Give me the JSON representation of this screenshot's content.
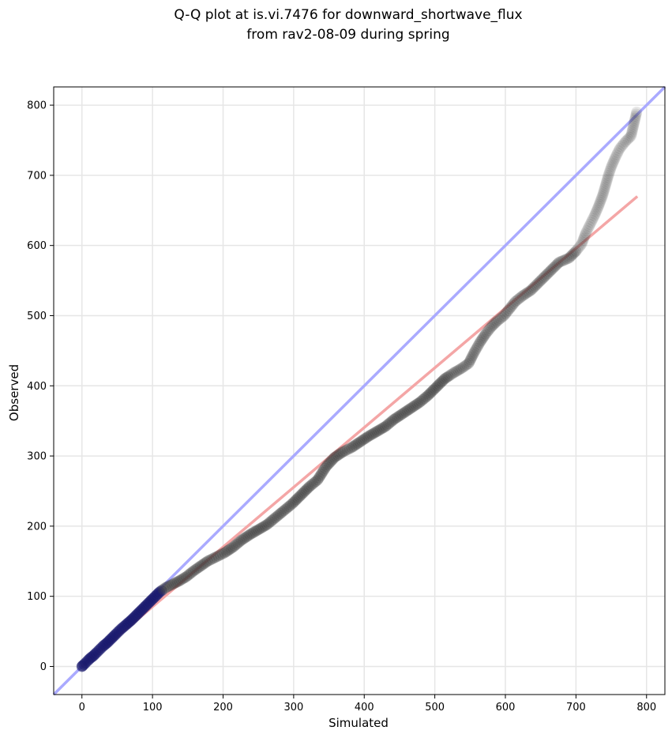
{
  "chart_data": {
    "type": "scatter",
    "title_lines": [
      "Q-Q plot at is.vi.7476 for downward_shortwave_flux",
      "from rav2-08-09 during spring"
    ],
    "xlabel": "Simulated",
    "ylabel": "Observed",
    "xlim": [
      -40,
      826
    ],
    "ylim": [
      -40,
      826
    ],
    "xticks": [
      0,
      100,
      200,
      300,
      400,
      500,
      600,
      700,
      800
    ],
    "yticks": [
      0,
      100,
      200,
      300,
      400,
      500,
      600,
      700,
      800
    ],
    "xtick_labels": [
      "0",
      "100",
      "200",
      "300",
      "400",
      "500",
      "600",
      "700",
      "800"
    ],
    "ytick_labels": [
      "0",
      "100",
      "200",
      "300",
      "400",
      "500",
      "600",
      "700",
      "800"
    ],
    "grid": true,
    "colors": {
      "identity_line": "#aaaaff",
      "fit_line": "#f4a6a6",
      "points": "#3a3a3a",
      "low_points": "#1a1a6e",
      "grid": "#e6e6e6"
    },
    "reference_lines": [
      {
        "kind": "identity",
        "color": "#aaaaff",
        "x": [
          -40,
          826
        ],
        "y": [
          -40,
          826
        ]
      },
      {
        "kind": "fit",
        "color": "#f4a6a6",
        "x": [
          0,
          787
        ],
        "y": [
          0,
          670
        ]
      }
    ],
    "quantiles": [
      {
        "x": 0,
        "y": 0
      },
      {
        "x": 1,
        "y": 1
      },
      {
        "x": 3,
        "y": 3
      },
      {
        "x": 5,
        "y": 5
      },
      {
        "x": 8,
        "y": 8
      },
      {
        "x": 12,
        "y": 12
      },
      {
        "x": 16,
        "y": 15
      },
      {
        "x": 20,
        "y": 19
      },
      {
        "x": 25,
        "y": 24
      },
      {
        "x": 30,
        "y": 29
      },
      {
        "x": 36,
        "y": 34
      },
      {
        "x": 42,
        "y": 40
      },
      {
        "x": 48,
        "y": 46
      },
      {
        "x": 55,
        "y": 53
      },
      {
        "x": 62,
        "y": 59
      },
      {
        "x": 70,
        "y": 66
      },
      {
        "x": 78,
        "y": 74
      },
      {
        "x": 86,
        "y": 82
      },
      {
        "x": 94,
        "y": 90
      },
      {
        "x": 102,
        "y": 98
      },
      {
        "x": 110,
        "y": 106
      },
      {
        "x": 118,
        "y": 112
      },
      {
        "x": 128,
        "y": 117
      },
      {
        "x": 138,
        "y": 122
      },
      {
        "x": 148,
        "y": 128
      },
      {
        "x": 158,
        "y": 136
      },
      {
        "x": 168,
        "y": 143
      },
      {
        "x": 178,
        "y": 150
      },
      {
        "x": 190,
        "y": 156
      },
      {
        "x": 202,
        "y": 162
      },
      {
        "x": 214,
        "y": 170
      },
      {
        "x": 226,
        "y": 180
      },
      {
        "x": 238,
        "y": 188
      },
      {
        "x": 250,
        "y": 195
      },
      {
        "x": 262,
        "y": 202
      },
      {
        "x": 274,
        "y": 212
      },
      {
        "x": 286,
        "y": 222
      },
      {
        "x": 298,
        "y": 232
      },
      {
        "x": 310,
        "y": 244
      },
      {
        "x": 322,
        "y": 256
      },
      {
        "x": 334,
        "y": 266
      },
      {
        "x": 346,
        "y": 285
      },
      {
        "x": 358,
        "y": 298
      },
      {
        "x": 370,
        "y": 306
      },
      {
        "x": 382,
        "y": 312
      },
      {
        "x": 394,
        "y": 320
      },
      {
        "x": 406,
        "y": 328
      },
      {
        "x": 418,
        "y": 335
      },
      {
        "x": 430,
        "y": 342
      },
      {
        "x": 442,
        "y": 352
      },
      {
        "x": 454,
        "y": 360
      },
      {
        "x": 466,
        "y": 368
      },
      {
        "x": 478,
        "y": 376
      },
      {
        "x": 490,
        "y": 386
      },
      {
        "x": 502,
        "y": 398
      },
      {
        "x": 514,
        "y": 410
      },
      {
        "x": 526,
        "y": 418
      },
      {
        "x": 538,
        "y": 425
      },
      {
        "x": 548,
        "y": 432
      },
      {
        "x": 556,
        "y": 448
      },
      {
        "x": 564,
        "y": 462
      },
      {
        "x": 572,
        "y": 474
      },
      {
        "x": 580,
        "y": 484
      },
      {
        "x": 588,
        "y": 492
      },
      {
        "x": 598,
        "y": 500
      },
      {
        "x": 606,
        "y": 510
      },
      {
        "x": 614,
        "y": 520
      },
      {
        "x": 624,
        "y": 528
      },
      {
        "x": 636,
        "y": 536
      },
      {
        "x": 646,
        "y": 546
      },
      {
        "x": 656,
        "y": 556
      },
      {
        "x": 666,
        "y": 566
      },
      {
        "x": 676,
        "y": 576
      },
      {
        "x": 690,
        "y": 582
      },
      {
        "x": 700,
        "y": 592
      },
      {
        "x": 708,
        "y": 602
      },
      {
        "x": 714,
        "y": 618
      },
      {
        "x": 720,
        "y": 630
      },
      {
        "x": 726,
        "y": 642
      },
      {
        "x": 732,
        "y": 656
      },
      {
        "x": 738,
        "y": 672
      },
      {
        "x": 742,
        "y": 686
      },
      {
        "x": 746,
        "y": 700
      },
      {
        "x": 750,
        "y": 712
      },
      {
        "x": 756,
        "y": 726
      },
      {
        "x": 762,
        "y": 738
      },
      {
        "x": 770,
        "y": 748
      },
      {
        "x": 778,
        "y": 756
      },
      {
        "x": 786,
        "y": 790
      }
    ]
  }
}
